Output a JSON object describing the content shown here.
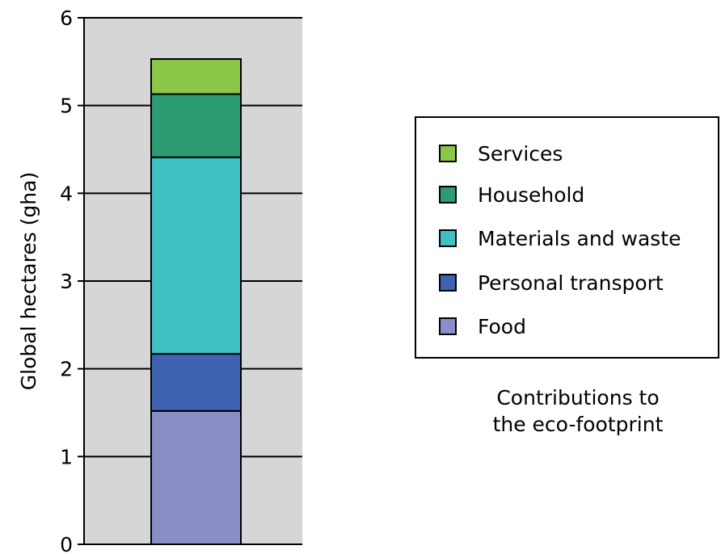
{
  "chart_data": {
    "type": "bar",
    "stacked": true,
    "categories": [
      ""
    ],
    "series": [
      {
        "name": "Food",
        "values": [
          1.52
        ],
        "color": "#8a8ec6"
      },
      {
        "name": "Personal transport",
        "values": [
          0.65
        ],
        "color": "#3e63b0"
      },
      {
        "name": "Materials and waste",
        "values": [
          2.24
        ],
        "color": "#3fc0c3"
      },
      {
        "name": "Household",
        "values": [
          0.72
        ],
        "color": "#2e9c72"
      },
      {
        "name": "Services",
        "values": [
          0.4
        ],
        "color": "#8cc646"
      }
    ],
    "ylabel": "Global hectares (gha)",
    "ylim": [
      0,
      6
    ],
    "yticks": [
      "0",
      "1",
      "2",
      "3",
      "4",
      "5",
      "6"
    ],
    "grid": true,
    "plot_background": "#d6d6d6",
    "legend_order": [
      "Services",
      "Household",
      "Materials and waste",
      "Personal transport",
      "Food"
    ],
    "legend_position": "right",
    "caption": [
      "Contributions to",
      "the eco-footprint"
    ]
  }
}
